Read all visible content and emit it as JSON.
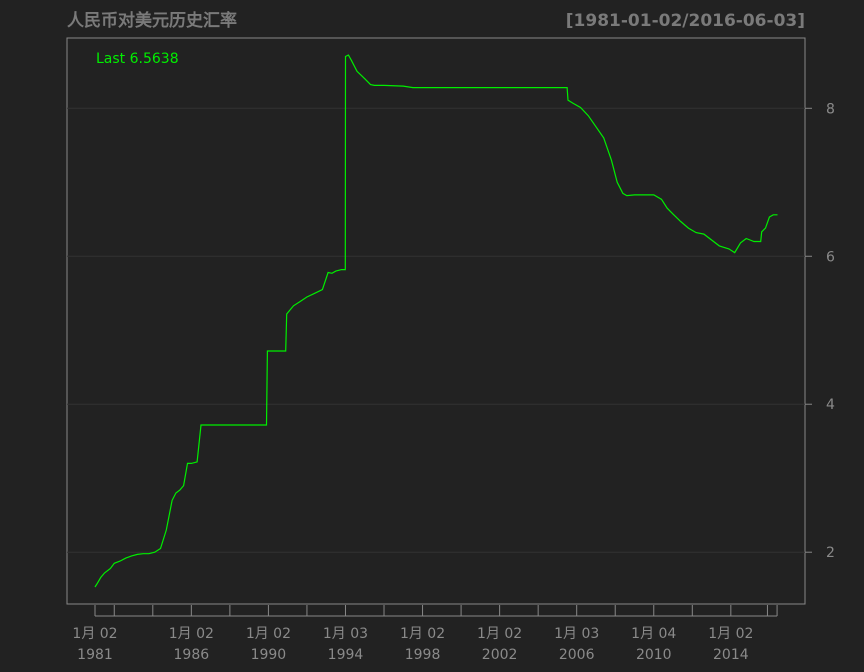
{
  "chart_data": {
    "type": "line",
    "title": "人民币对美元历史汇率",
    "date_range": "[1981-01-02/2016-06-03]",
    "legend": "Last 6.5638",
    "last_value": 6.5638,
    "colors": {
      "background": "#222222",
      "line": "#00ee00",
      "axis": "#888888",
      "text": "#7a7a7a"
    },
    "grid": true,
    "xlim": [
      1981.0,
      2016.5
    ],
    "ylim": [
      1.3,
      8.95
    ],
    "y_ticks": [
      {
        "value": 2,
        "label": "2"
      },
      {
        "value": 4,
        "label": "4"
      },
      {
        "value": 6,
        "label": "6"
      },
      {
        "value": 8,
        "label": "8"
      }
    ],
    "x_ticks": [
      {
        "pos": 1981.0,
        "line1": "1月 02",
        "line2": "1981"
      },
      {
        "pos": 1986.0,
        "line1": "1月 02",
        "line2": "1986"
      },
      {
        "pos": 1990.0,
        "line1": "1月 02",
        "line2": "1990"
      },
      {
        "pos": 1994.0,
        "line1": "1月 03",
        "line2": "1994"
      },
      {
        "pos": 1998.0,
        "line1": "1月 02",
        "line2": "1998"
      },
      {
        "pos": 2002.0,
        "line1": "1月 02",
        "line2": "2002"
      },
      {
        "pos": 2006.0,
        "line1": "1月 03",
        "line2": "2006"
      },
      {
        "pos": 2010.0,
        "line1": "1月 04",
        "line2": "2010"
      },
      {
        "pos": 2014.0,
        "line1": "1月 02",
        "line2": "2014"
      }
    ],
    "x_minor_ticks": [
      1982.0,
      1984.0,
      1988.0,
      1992.0,
      1996.0,
      2000.0,
      2004.0,
      2008.0,
      2012.0,
      2015.9,
      2016.4
    ],
    "series": [
      {
        "x": [
          1981.0,
          1981.1,
          1981.3,
          1981.5,
          1981.8,
          1982.0,
          1982.3,
          1982.6,
          1982.9,
          1983.2,
          1983.5,
          1983.8,
          1984.1,
          1984.4,
          1984.7,
          1985.0,
          1985.2,
          1985.4,
          1985.6,
          1985.8,
          1986.0,
          1986.3,
          1986.5,
          1986.55,
          1986.9,
          1987.2,
          1987.5,
          1988.0,
          1989.0,
          1989.9,
          1989.95,
          1990.5,
          1990.9,
          1990.95,
          1991.3,
          1991.6,
          1992.0,
          1992.4,
          1992.8,
          1993.1,
          1993.3,
          1993.5,
          1993.8,
          1993.99,
          1994.0,
          1994.15,
          1994.3,
          1994.6,
          1995.0,
          1995.3,
          1995.5,
          1996.0,
          1997.0,
          1997.5,
          1998.0,
          2000.0,
          2002.0,
          2004.0,
          2005.5,
          2005.55,
          2005.8,
          2006.2,
          2006.6,
          2007.0,
          2007.4,
          2007.8,
          2008.1,
          2008.4,
          2008.6,
          2009.0,
          2009.5,
          2010.0,
          2010.4,
          2010.7,
          2011.0,
          2011.4,
          2011.8,
          2012.2,
          2012.6,
          2013.0,
          2013.4,
          2013.9,
          2014.2,
          2014.5,
          2014.8,
          2015.2,
          2015.55,
          2015.6,
          2015.8,
          2016.0,
          2016.2,
          2016.42
        ],
        "y": [
          1.53,
          1.57,
          1.66,
          1.72,
          1.78,
          1.85,
          1.88,
          1.92,
          1.95,
          1.97,
          1.98,
          1.98,
          2.0,
          2.05,
          2.3,
          2.7,
          2.8,
          2.84,
          2.9,
          3.2,
          3.2,
          3.22,
          3.72,
          3.72,
          3.72,
          3.72,
          3.72,
          3.72,
          3.72,
          3.72,
          4.72,
          4.72,
          4.72,
          5.22,
          5.33,
          5.38,
          5.45,
          5.5,
          5.55,
          5.78,
          5.77,
          5.8,
          5.82,
          5.82,
          8.7,
          8.72,
          8.65,
          8.5,
          8.4,
          8.32,
          8.31,
          8.31,
          8.3,
          8.28,
          8.28,
          8.28,
          8.28,
          8.28,
          8.28,
          8.11,
          8.07,
          8.01,
          7.9,
          7.75,
          7.6,
          7.3,
          7.0,
          6.85,
          6.82,
          6.83,
          6.83,
          6.83,
          6.77,
          6.65,
          6.57,
          6.47,
          6.38,
          6.32,
          6.3,
          6.22,
          6.14,
          6.1,
          6.05,
          6.18,
          6.24,
          6.2,
          6.2,
          6.33,
          6.38,
          6.53,
          6.56,
          6.56
        ]
      }
    ]
  }
}
